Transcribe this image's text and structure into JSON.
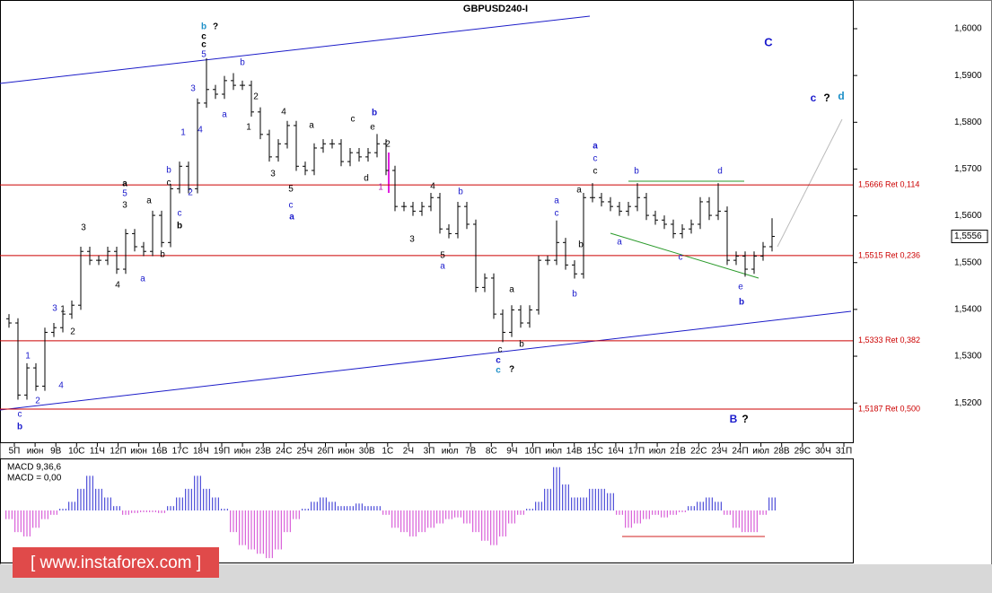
{
  "chart_data": {
    "type": "ohlc",
    "title": "GBPUSD240-I",
    "categories": [
      "5П",
      "июн",
      "9В",
      "10С",
      "11Ч",
      "12П",
      "июн",
      "16В",
      "17С",
      "18Ч",
      "19П",
      "июн",
      "23В",
      "24С",
      "25Ч",
      "26П",
      "июн",
      "30В",
      "1С",
      "2Ч",
      "3П",
      "июл",
      "7В",
      "8С",
      "9Ч",
      "10П",
      "июл",
      "14В",
      "15С",
      "16Ч",
      "17П",
      "июл",
      "21В",
      "22С",
      "23Ч",
      "24П",
      "июл",
      "28В",
      "29С",
      "30Ч",
      "31П"
    ],
    "ohlc": [
      [
        1.538,
        1.539,
        1.5361,
        1.5371
      ],
      [
        1.5371,
        1.5381,
        1.5207,
        1.5217
      ],
      [
        1.5217,
        1.5285,
        1.5207,
        1.5275
      ],
      [
        1.5275,
        1.5285,
        1.5226,
        1.5236
      ],
      [
        1.5236,
        1.5361,
        1.5226,
        1.5351
      ],
      [
        1.5351,
        1.5371,
        1.5341,
        1.5361
      ],
      [
        1.5361,
        1.54,
        1.5351,
        1.539
      ],
      [
        1.539,
        1.5419,
        1.538,
        1.5409
      ],
      [
        1.5409,
        1.5534,
        1.5399,
        1.5524
      ],
      [
        1.5524,
        1.5534,
        1.5495,
        1.5505
      ],
      [
        1.5505,
        1.5515,
        1.5495,
        1.5505
      ],
      [
        1.5505,
        1.5534,
        1.5495,
        1.5524
      ],
      [
        1.5524,
        1.5534,
        1.5476,
        1.5486
      ],
      [
        1.5486,
        1.5572,
        1.5476,
        1.5562
      ],
      [
        1.5562,
        1.5572,
        1.5524,
        1.5534
      ],
      [
        1.5534,
        1.5544,
        1.5514,
        1.5524
      ],
      [
        1.5524,
        1.5611,
        1.5514,
        1.5601
      ],
      [
        1.5601,
        1.5611,
        1.5533,
        1.5543
      ],
      [
        1.5543,
        1.5668,
        1.5533,
        1.5658
      ],
      [
        1.5658,
        1.5716,
        1.5648,
        1.5706
      ],
      [
        1.5706,
        1.5716,
        1.5648,
        1.5658
      ],
      [
        1.5658,
        1.5851,
        1.5648,
        1.5841
      ],
      [
        1.5841,
        1.5937,
        1.5831,
        1.587
      ],
      [
        1.587,
        1.588,
        1.585,
        1.586
      ],
      [
        1.586,
        1.5899,
        1.585,
        1.5889
      ],
      [
        1.5889,
        1.5905,
        1.5869,
        1.5879
      ],
      [
        1.5879,
        1.5889,
        1.5869,
        1.5879
      ],
      [
        1.5879,
        1.5889,
        1.5812,
        1.5822
      ],
      [
        1.5822,
        1.5832,
        1.5764,
        1.5774
      ],
      [
        1.5774,
        1.5784,
        1.5716,
        1.5726
      ],
      [
        1.5726,
        1.5764,
        1.5716,
        1.5754
      ],
      [
        1.5754,
        1.5803,
        1.5744,
        1.5793
      ],
      [
        1.5793,
        1.5803,
        1.5696,
        1.5706
      ],
      [
        1.5706,
        1.5716,
        1.5687,
        1.5697
      ],
      [
        1.5697,
        1.5755,
        1.5687,
        1.5745
      ],
      [
        1.5745,
        1.5764,
        1.5735,
        1.5754
      ],
      [
        1.5754,
        1.5764,
        1.5744,
        1.5754
      ],
      [
        1.5754,
        1.5764,
        1.5706,
        1.5716
      ],
      [
        1.5716,
        1.5745,
        1.5706,
        1.5735
      ],
      [
        1.5735,
        1.5745,
        1.5716,
        1.5726
      ],
      [
        1.5726,
        1.5745,
        1.5716,
        1.5735
      ],
      [
        1.5735,
        1.5775,
        1.5725,
        1.5754
      ],
      [
        1.5754,
        1.5764,
        1.5687,
        1.5697
      ],
      [
        1.5697,
        1.5707,
        1.561,
        1.562
      ],
      [
        1.562,
        1.563,
        1.561,
        1.562
      ],
      [
        1.562,
        1.563,
        1.56,
        1.561
      ],
      [
        1.561,
        1.563,
        1.56,
        1.562
      ],
      [
        1.562,
        1.5649,
        1.561,
        1.5639
      ],
      [
        1.5639,
        1.5649,
        1.5562,
        1.5572
      ],
      [
        1.5572,
        1.5582,
        1.5552,
        1.5562
      ],
      [
        1.5562,
        1.563,
        1.5552,
        1.562
      ],
      [
        1.562,
        1.563,
        1.5572,
        1.5582
      ],
      [
        1.5582,
        1.5592,
        1.5437,
        1.5447
      ],
      [
        1.5447,
        1.5477,
        1.5437,
        1.5467
      ],
      [
        1.5467,
        1.5477,
        1.538,
        1.539
      ],
      [
        1.539,
        1.54,
        1.533,
        1.5351
      ],
      [
        1.5351,
        1.5409,
        1.5341,
        1.5399
      ],
      [
        1.5399,
        1.5409,
        1.5361,
        1.5371
      ],
      [
        1.5371,
        1.5409,
        1.5361,
        1.5399
      ],
      [
        1.5399,
        1.5515,
        1.5389,
        1.5505
      ],
      [
        1.5505,
        1.5515,
        1.5495,
        1.5505
      ],
      [
        1.5505,
        1.559,
        1.5495,
        1.5543
      ],
      [
        1.5543,
        1.5553,
        1.5485,
        1.5495
      ],
      [
        1.5495,
        1.5505,
        1.5466,
        1.5476
      ],
      [
        1.5476,
        1.5649,
        1.5466,
        1.5639
      ],
      [
        1.5639,
        1.567,
        1.5629,
        1.5639
      ],
      [
        1.5639,
        1.5649,
        1.562,
        1.563
      ],
      [
        1.563,
        1.564,
        1.561,
        1.562
      ],
      [
        1.562,
        1.563,
        1.56,
        1.561
      ],
      [
        1.561,
        1.563,
        1.56,
        1.562
      ],
      [
        1.562,
        1.567,
        1.561,
        1.5639
      ],
      [
        1.5639,
        1.5649,
        1.5591,
        1.5601
      ],
      [
        1.5601,
        1.5611,
        1.5581,
        1.5591
      ],
      [
        1.5591,
        1.5601,
        1.5572,
        1.5582
      ],
      [
        1.5582,
        1.5592,
        1.5552,
        1.5562
      ],
      [
        1.5562,
        1.5582,
        1.5552,
        1.5572
      ],
      [
        1.5572,
        1.5592,
        1.5562,
        1.5582
      ],
      [
        1.5582,
        1.564,
        1.5572,
        1.563
      ],
      [
        1.563,
        1.564,
        1.5591,
        1.5601
      ],
      [
        1.5601,
        1.567,
        1.5591,
        1.561
      ],
      [
        1.561,
        1.562,
        1.5495,
        1.5505
      ],
      [
        1.5505,
        1.5524,
        1.5495,
        1.5514
      ],
      [
        1.5514,
        1.5524,
        1.547,
        1.5486
      ],
      [
        1.5486,
        1.5524,
        1.5476,
        1.5514
      ],
      [
        1.5514,
        1.5544,
        1.5504,
        1.5534
      ],
      [
        1.5534,
        1.5595,
        1.5524,
        1.5556
      ]
    ],
    "color": "#000000",
    "ylim": [
      1.5116,
      1.6046
    ],
    "yticks": [
      {
        "value": 1.52,
        "label": "1,5200"
      },
      {
        "value": 1.53,
        "label": "1,5300"
      },
      {
        "value": 1.54,
        "label": "1,5400"
      },
      {
        "value": 1.55,
        "label": "1,5500"
      },
      {
        "value": 1.56,
        "label": "1,5600"
      },
      {
        "value": 1.57,
        "label": "1,5700"
      },
      {
        "value": 1.58,
        "label": "1,5800"
      },
      {
        "value": 1.59,
        "label": "1,5900"
      },
      {
        "value": 1.6,
        "label": "1,6000"
      }
    ],
    "levels": [
      {
        "value": 1.5666,
        "label": "1,5666 Ret 0,114"
      },
      {
        "value": 1.5515,
        "label": "1,5515 Ret 0,236"
      },
      {
        "value": 1.5333,
        "label": "1,5333 Ret 0,382"
      },
      {
        "value": 1.5187,
        "label": "1,5187 Ret 0,500"
      }
    ],
    "level_color": "#cc0000",
    "last_price": {
      "value": 1.5556,
      "label": "1,5556"
    },
    "wave_labels": [
      "b",
      "?",
      "c",
      "c",
      "5",
      "3",
      "4",
      "a",
      "b",
      "2",
      "1",
      "4",
      "3",
      "a",
      "c",
      "b",
      "e",
      "d",
      "1",
      "2",
      "5",
      "c",
      "a",
      "4",
      "3",
      "b",
      "5",
      "a",
      "a",
      "c",
      "c",
      "?",
      "b",
      "c",
      "a",
      "c",
      "b",
      "b",
      "a",
      "c",
      "c",
      "a",
      "b",
      "d",
      "a",
      "c",
      "e",
      "b",
      "C",
      "c",
      "?",
      "d",
      "B",
      "?",
      "1",
      "2",
      "3",
      "4",
      "1",
      "2",
      "3",
      "4",
      "5",
      "a",
      "3",
      "a",
      "b",
      "b",
      "c",
      "c",
      "b",
      "1",
      "2",
      "a",
      "c",
      "b"
    ],
    "macd": {
      "title": "MACD 9,36,6",
      "value_text": "MACD = 0,00",
      "ylim": [
        -0.0058,
        0.0058
      ],
      "positive_color": "#2a2ad0",
      "negative_color": "#d040d0",
      "values": [
        -0.001,
        -0.0025,
        -0.003,
        -0.002,
        -0.001,
        -0.0005,
        0.0002,
        0.001,
        0.0025,
        0.004,
        0.0025,
        0.0015,
        0.0005,
        -0.0005,
        -0.0003,
        -0.0002,
        -0.0002,
        -0.0003,
        0.0005,
        0.0015,
        0.0025,
        0.004,
        0.0025,
        0.0015,
        0.0002,
        -0.0025,
        -0.004,
        -0.0045,
        -0.005,
        -0.0055,
        -0.0045,
        -0.0025,
        -0.001,
        0.0002,
        0.001,
        0.0015,
        0.001,
        0.0005,
        0.0005,
        0.0008,
        0.0005,
        0.0005,
        -0.0005,
        -0.002,
        -0.0025,
        -0.003,
        -0.0025,
        -0.002,
        -0.0015,
        -0.001,
        -0.0008,
        -0.0015,
        -0.0025,
        -0.0035,
        -0.004,
        -0.003,
        -0.0015,
        -0.0005,
        0.0002,
        0.001,
        0.0025,
        0.005,
        0.003,
        0.0015,
        0.0015,
        0.0025,
        0.0025,
        0.002,
        -0.0005,
        -0.002,
        -0.0015,
        -0.001,
        -0.0005,
        -0.0008,
        -0.0005,
        -0.0002,
        0.0005,
        0.001,
        0.0015,
        0.001,
        -0.0005,
        -0.002,
        -0.0025,
        -0.0025,
        -0.0005,
        0.0015
      ]
    },
    "watermark": "[ www.instaforex.com ]"
  }
}
